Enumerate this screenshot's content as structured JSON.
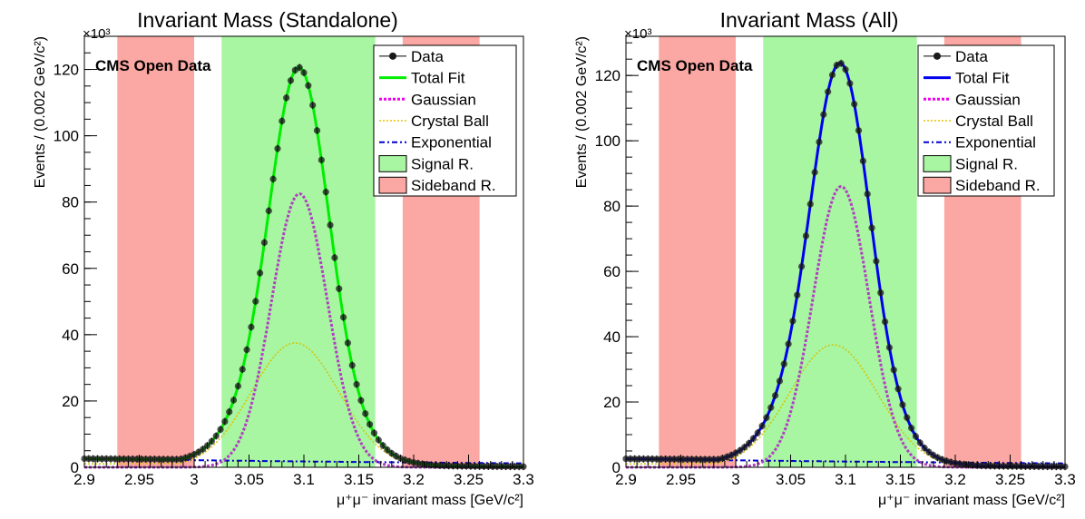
{
  "chart_data": [
    {
      "type": "line",
      "title": "Invariant Mass (Standalone)",
      "watermark": "CMS Open Data",
      "xlabel": "μ⁺μ⁻ invariant mass [GeV/c²]",
      "ylabel": "Events / (0.002 GeV/c²)",
      "y_exponent_label": "×10³",
      "xlim": [
        2.9,
        3.3
      ],
      "ylim": [
        0,
        130
      ],
      "x_ticks": [
        "2.9",
        "2.95",
        "3",
        "3.05",
        "3.1",
        "3.15",
        "3.2",
        "3.25",
        "3.3"
      ],
      "y_ticks": [
        "0",
        "20",
        "40",
        "60",
        "80",
        "100",
        "120"
      ],
      "total_fit_color": "#00ee00",
      "regions": [
        {
          "kind": "sideband",
          "from": 2.93,
          "to": 3.0
        },
        {
          "kind": "signal",
          "from": 3.025,
          "to": 3.165
        },
        {
          "kind": "sideband",
          "from": 3.19,
          "to": 3.26
        }
      ],
      "model": {
        "gaussian": {
          "amp": 82.5,
          "mean": 3.096,
          "sigma": 0.0255
        },
        "crystal_ball": {
          "amp": 37.5,
          "mean": 3.092,
          "sigma": 0.04,
          "tail_start": 3.0,
          "tail_level": 1.0
        },
        "exponential": {
          "at_2_9": 2.6,
          "at_3_3": 1.2
        }
      },
      "data_points": {
        "x_min": 2.9,
        "x_max": 3.3,
        "step": 0.004
      },
      "legend": {
        "position": "top-right",
        "entries": [
          "Data",
          "Total Fit",
          "Gaussian",
          "Crystal Ball",
          "Exponential",
          "Signal R.",
          "Sideband R."
        ]
      }
    },
    {
      "type": "line",
      "title": "Invariant Mass (All)",
      "watermark": "CMS Open Data",
      "xlabel": "μ⁺μ⁻ invariant mass [GeV/c²]",
      "ylabel": "Events / (0.002 GeV/c²)",
      "y_exponent_label": "×10³",
      "xlim": [
        2.9,
        3.3
      ],
      "ylim": [
        0,
        132
      ],
      "x_ticks": [
        "2.9",
        "2.95",
        "3",
        "3.05",
        "3.1",
        "3.15",
        "3.2",
        "3.25",
        "3.3"
      ],
      "y_ticks": [
        "0",
        "20",
        "40",
        "60",
        "80",
        "100",
        "120"
      ],
      "total_fit_color": "#0000ee",
      "regions": [
        {
          "kind": "sideband",
          "from": 2.93,
          "to": 3.0
        },
        {
          "kind": "signal",
          "from": 3.025,
          "to": 3.165
        },
        {
          "kind": "sideband",
          "from": 3.19,
          "to": 3.26
        }
      ],
      "model": {
        "gaussian": {
          "amp": 86.0,
          "mean": 3.096,
          "sigma": 0.0255
        },
        "crystal_ball": {
          "amp": 37.5,
          "mean": 3.089,
          "sigma": 0.04,
          "tail_start": 3.0,
          "tail_level": 1.0
        },
        "exponential": {
          "at_2_9": 2.6,
          "at_3_3": 1.2
        }
      },
      "data_points": {
        "x_min": 2.9,
        "x_max": 3.3,
        "step": 0.004
      },
      "legend": {
        "position": "top-right",
        "entries": [
          "Data",
          "Total Fit",
          "Gaussian",
          "Crystal Ball",
          "Exponential",
          "Signal R.",
          "Sideband R."
        ]
      }
    }
  ]
}
